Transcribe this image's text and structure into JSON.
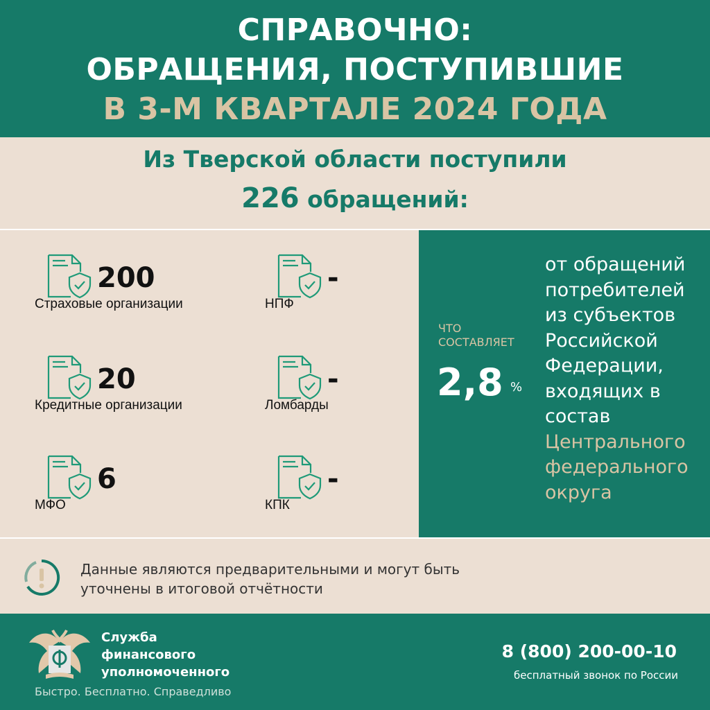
{
  "header": {
    "line1": "СПРАВОЧНО:",
    "line2": "ОБРАЩЕНИЯ, ПОСТУПИВШИЕ",
    "line3": "В 3-М КВАРТАЛЕ 2024 ГОДА"
  },
  "summary": {
    "text": "Из Тверской области поступили",
    "count": "226",
    "suffix": "обращений:"
  },
  "items": [
    {
      "value": "200",
      "label": "Страховые организации"
    },
    {
      "value": "-",
      "label": "НПФ"
    },
    {
      "value": "20",
      "label": "Кредитные организации"
    },
    {
      "value": "-",
      "label": "Ломбарды"
    },
    {
      "value": "6",
      "label": "МФО"
    },
    {
      "value": "-",
      "label": "КПК"
    }
  ],
  "share": {
    "what": "ЧТО СОСТАВЛЯЕТ",
    "value": "2,8",
    "unit": "%",
    "desc": "от обращений потребителей из субъектов Российской Федерации, входящих в состав",
    "desc_highlight": "Центрального федерального округа"
  },
  "note": {
    "text": "Данные являются предварительными и могут быть уточнены в итоговой отчётности",
    "icon": "exclamation-icon"
  },
  "footer": {
    "org": "Служба финансового уполномоченного",
    "slogan": "Быстро. Бесплатно. Справедливо",
    "phone": "8 (800) 200-00-10",
    "phone_note": "бесплатный звонок по России"
  },
  "colors": {
    "green": "#167a68",
    "beige": "#ecdfd3",
    "gold": "#d9c4a4"
  }
}
